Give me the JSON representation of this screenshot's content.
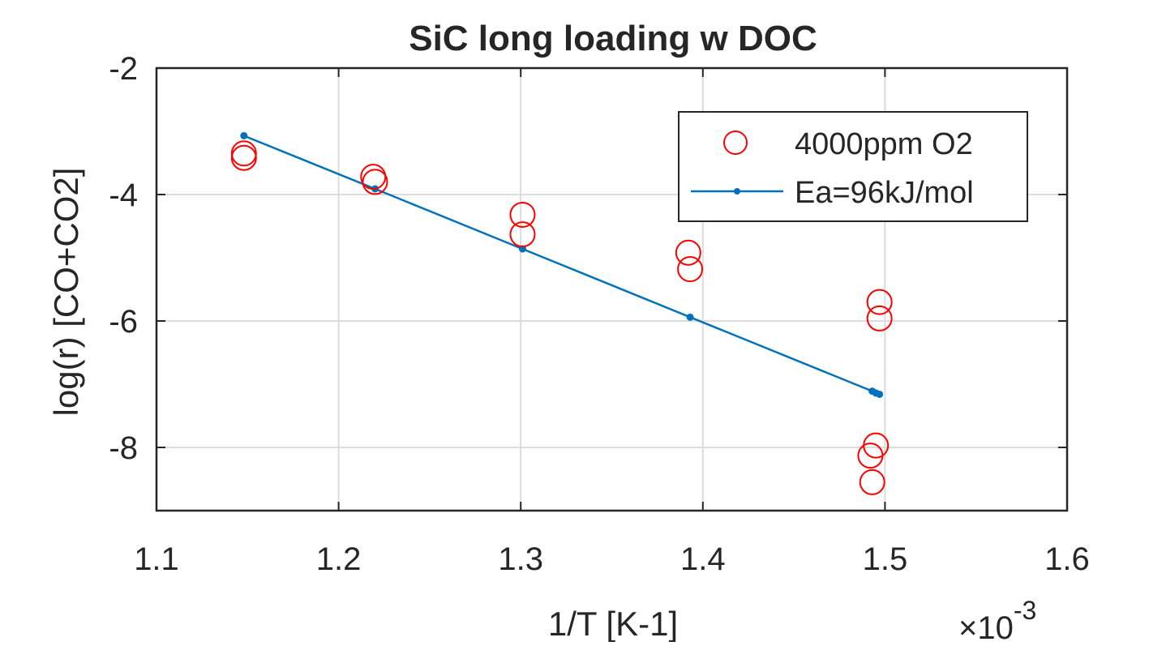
{
  "chart_data": {
    "type": "scatter",
    "title": "SiC long loading w DOC",
    "xlabel": "1/T [K-1]",
    "ylabel": "log(r) [CO+CO2]",
    "x_multiplier": "×10",
    "x_multiplier_exponent": "-3",
    "xlim": [
      1.1,
      1.6
    ],
    "ylim": [
      -9,
      -2
    ],
    "xticks": [
      "1.1",
      "1.2",
      "1.3",
      "1.4",
      "1.5",
      "1.6"
    ],
    "yticks": [
      "-2",
      "-4",
      "-6",
      "-8"
    ],
    "grid": true,
    "legend_position": "top-right",
    "series": [
      {
        "name": "4000ppm O2",
        "marker": "open-circle",
        "color": "#ff0000",
        "points": [
          [
            1.148,
            -3.35
          ],
          [
            1.148,
            -3.42
          ],
          [
            1.219,
            -3.72
          ],
          [
            1.22,
            -3.8
          ],
          [
            1.301,
            -4.32
          ],
          [
            1.301,
            -4.63
          ],
          [
            1.392,
            -4.92
          ],
          [
            1.393,
            -5.18
          ],
          [
            1.497,
            -5.7
          ],
          [
            1.497,
            -5.96
          ],
          [
            1.495,
            -7.97
          ],
          [
            1.492,
            -8.13
          ],
          [
            1.493,
            -8.55
          ]
        ]
      },
      {
        "name": "Ea=96kJ/mol",
        "marker": "dot-line",
        "color": "#0072bd",
        "points": [
          [
            1.148,
            -3.07
          ],
          [
            1.22,
            -3.91
          ],
          [
            1.301,
            -4.86
          ],
          [
            1.393,
            -5.94
          ],
          [
            1.493,
            -7.11
          ],
          [
            1.495,
            -7.14
          ],
          [
            1.497,
            -7.16
          ]
        ]
      }
    ]
  }
}
